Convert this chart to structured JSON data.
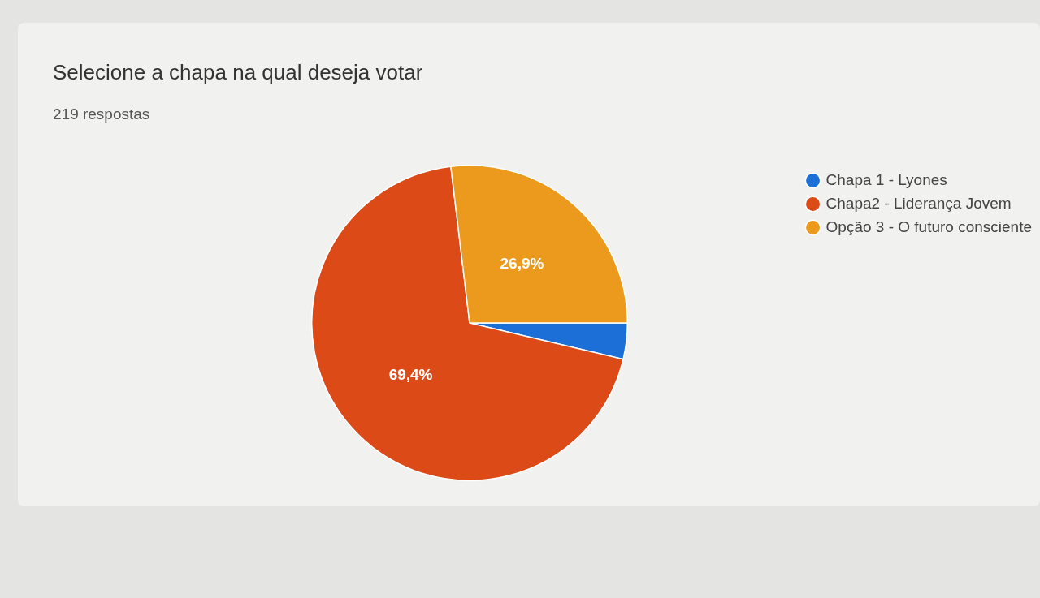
{
  "chart_data": {
    "type": "pie",
    "title": "Selecione a chapa na qual deseja votar",
    "subtitle": "219 respostas",
    "categories": [
      "Chapa 1 - Lyones",
      "Chapa2 - Liderança Jovem",
      "Opção 3 - O futuro consciente"
    ],
    "values": [
      3.7,
      69.4,
      26.9
    ],
    "colors": [
      "#1b6fd6",
      "#dc4a17",
      "#eb9a1d"
    ],
    "value_labels": [
      null,
      "69,4%",
      "26,9%"
    ],
    "legend": "right"
  }
}
